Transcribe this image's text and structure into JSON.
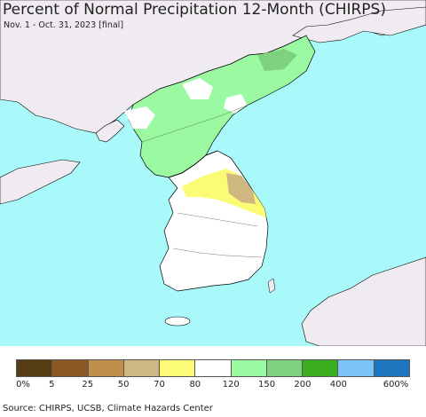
{
  "title": "Percent of Normal Precipitation 12-Month (CHIRPS)",
  "subtitle": "Nov. 1 - Oct. 31, 2023 [final]",
  "source": "Source: CHIRPS, UCSB, Climate Hazards Center",
  "colors": {
    "sea": "#aaf9fa",
    "land_outside": "#efebf0",
    "border": "#000000"
  },
  "legend": {
    "colors": [
      "#573d13",
      "#8b5a22",
      "#c08f4c",
      "#cfb781",
      "#fbfb76",
      "#ffffff",
      "#9bf9a2",
      "#7ed17e",
      "#3aae1f",
      "#7cc4f7",
      "#1d76be"
    ],
    "labels": [
      "0%",
      "5",
      "25",
      "50",
      "70",
      "80",
      "120",
      "150",
      "200",
      "400",
      "600%"
    ]
  }
}
